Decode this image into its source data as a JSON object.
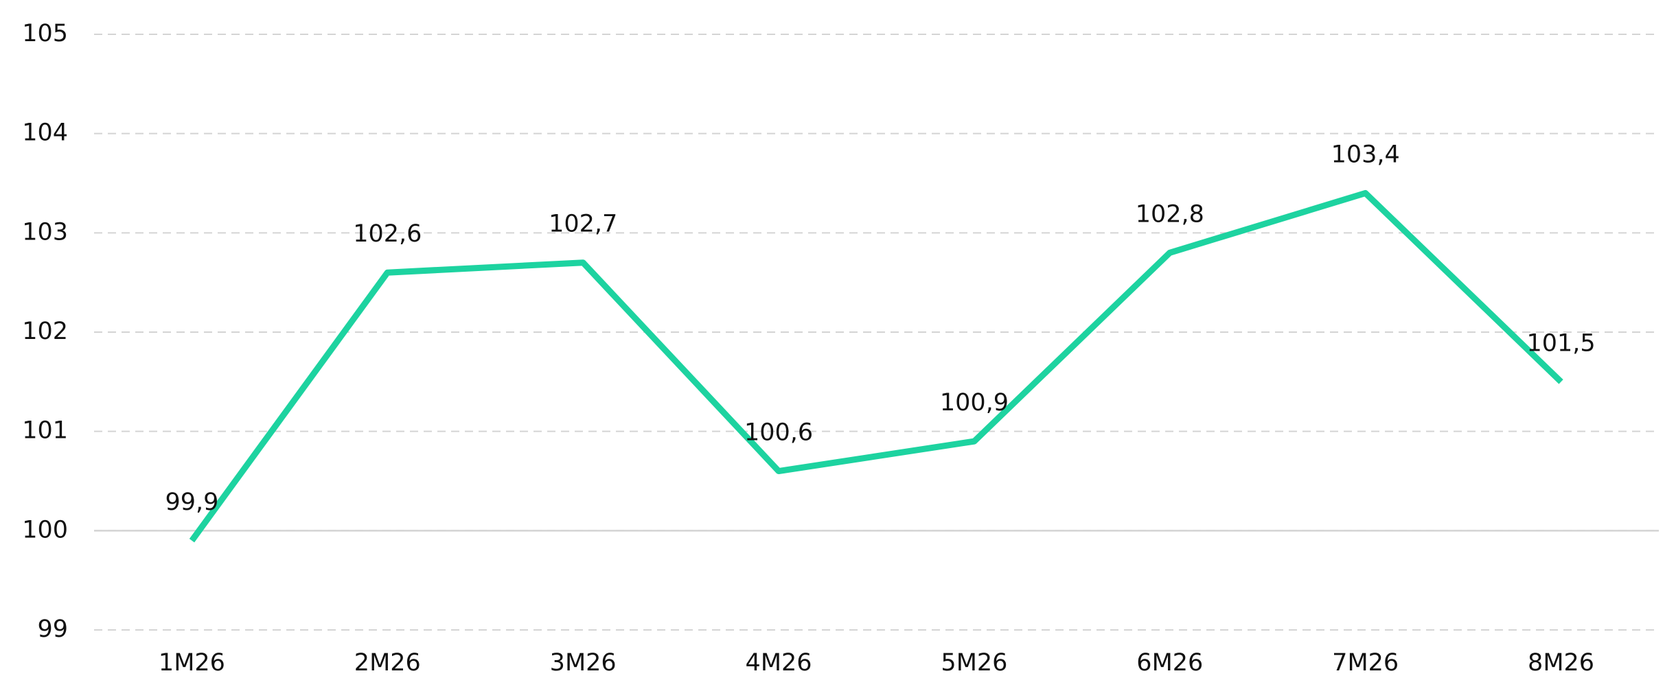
{
  "chart_data": {
    "type": "line",
    "categories": [
      "1M26",
      "2M26",
      "3M26",
      "4M26",
      "5M26",
      "6M26",
      "7M26",
      "8M26"
    ],
    "values": [
      99.9,
      102.6,
      102.7,
      100.6,
      100.9,
      102.8,
      103.4,
      101.5
    ],
    "value_labels": [
      "99,9",
      "102,6",
      "102,7",
      "100,6",
      "100,9",
      "102,8",
      "103,4",
      "101,5"
    ],
    "color": "#1dd3a0",
    "ylim": [
      99,
      105
    ],
    "yticks": [
      99,
      100,
      101,
      102,
      103,
      104,
      105
    ],
    "grid": true,
    "baseline": 100
  }
}
